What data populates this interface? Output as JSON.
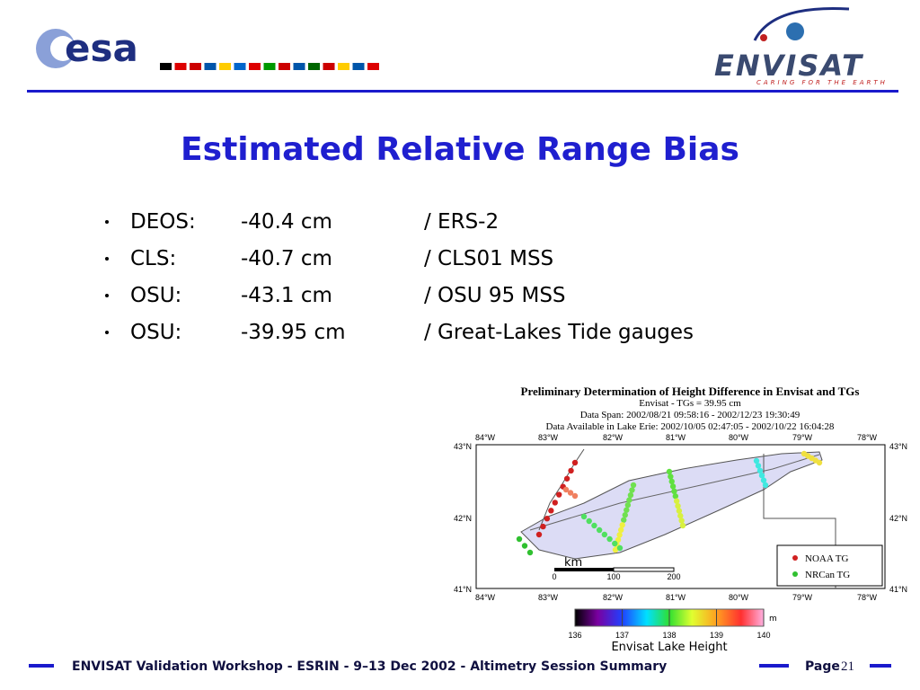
{
  "header": {
    "logo_left": "esa",
    "logo_right": "ENVISAT",
    "tagline": "CARING FOR THE EARTH"
  },
  "title": "Estimated Relative Range Bias",
  "bullets": [
    [
      "DEOS:",
      "-40.4 cm",
      "/ ERS-2"
    ],
    [
      "CLS:",
      "-40.7 cm",
      "/ CLS01 MSS"
    ],
    [
      "OSU:",
      "-43.1 cm",
      "/  OSU 95 MSS"
    ],
    [
      "OSU:",
      "-39.95 cm",
      "/ Great-Lakes Tide gauges"
    ]
  ],
  "figure": {
    "title": "Preliminary Determination of Height Difference in Envisat and TGs",
    "subtitle": "Envisat - TGs = 39.95 cm",
    "span": "Data Span: 2002/08/21 09:58:16 - 2002/12/23 19:30:49",
    "available": "Data Available in Lake Erie: 2002/10/05 02:47:05 - 2002/10/22 16:04:28",
    "lon_labels": [
      "84°W",
      "83°W",
      "82°W",
      "81°W",
      "80°W",
      "79°W",
      "78°W"
    ],
    "lat_labels": [
      "43°N",
      "42°N",
      "41°N"
    ],
    "legend": [
      "NOAA TG",
      "NRCan TG"
    ],
    "scale_unit": "km",
    "scale_ticks": [
      "0",
      "100",
      "200"
    ],
    "colorbar_ticks": [
      "136",
      "137",
      "138",
      "139",
      "140"
    ],
    "colorbar_unit": "m",
    "colorbar_title": "Envisat Lake Height"
  },
  "footer": {
    "text": "ENVISAT Validation Workshop - ESRIN - 9–13 Dec 2002 - Altimetry Session Summary",
    "page_label": "Page",
    "page_number": "21"
  }
}
